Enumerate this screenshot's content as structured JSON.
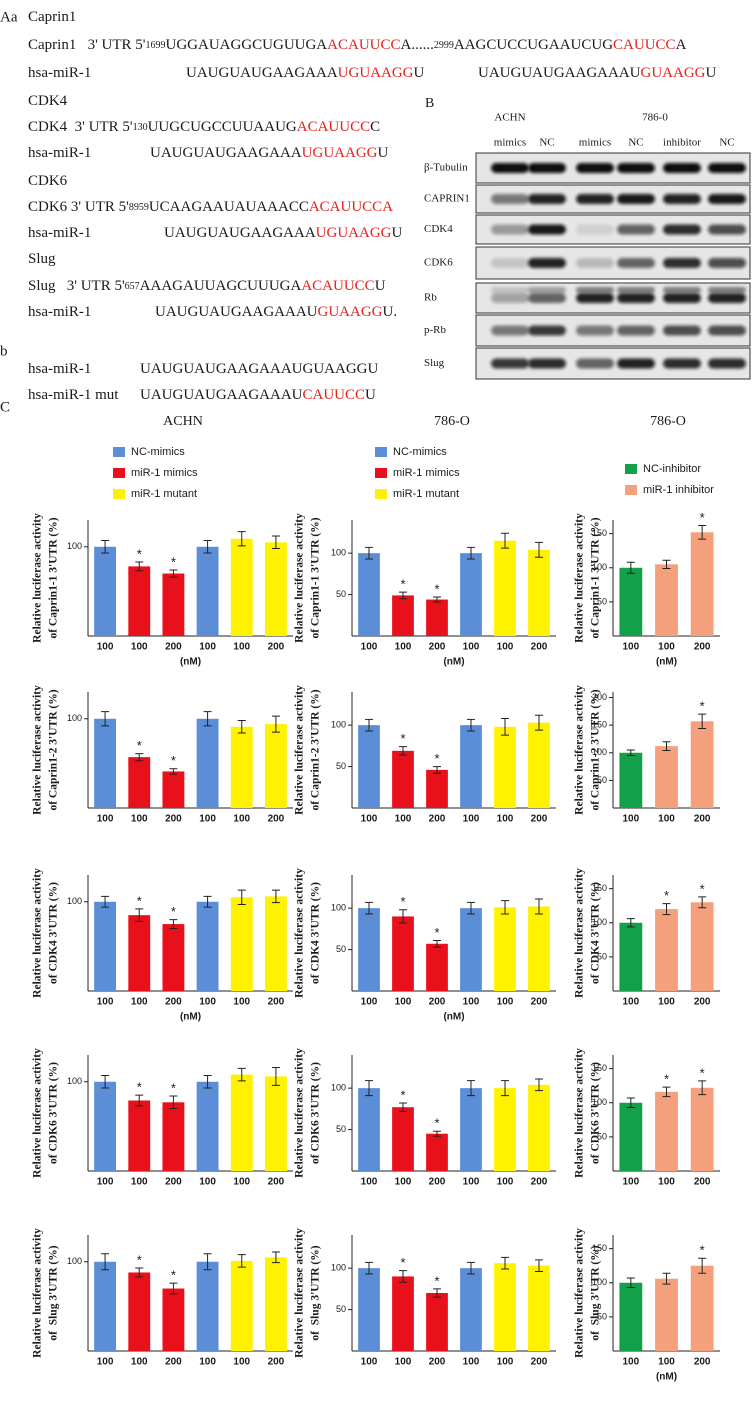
{
  "panel_A": {
    "label": "Aa",
    "lines": [
      [
        [
          {
            "text": "Caprin1"
          }
        ]
      ],
      [
        [
          {
            "text": "Caprin1   3' UTR 5'"
          },
          {
            "text": "1699",
            "small": true
          },
          {
            "text": "UGGAUAGGCUGUUGA"
          },
          {
            "text": "ACAUUCC",
            "color": "#e3211c"
          },
          {
            "text": "A......"
          },
          {
            "text": "2999",
            "small": true
          },
          {
            "text": "AAGCUCCUGAAUCUG"
          },
          {
            "text": "CAUUCC",
            "color": "#e3211c"
          },
          {
            "text": "A"
          }
        ]
      ],
      [
        [
          {
            "text": "hsa-miR-1"
          }
        ],
        [
          {
            "text": "UAUGUAUGAAGAAA"
          },
          {
            "text": "UGUAAGG",
            "color": "#e3211c"
          },
          {
            "text": "U"
          }
        ],
        [
          {
            "text": "UAUGUAUGAAGAAAU"
          },
          {
            "text": "GUAAGG",
            "color": "#e3211c"
          },
          {
            "text": "U"
          }
        ]
      ],
      [
        [
          {
            "text": "CDK4"
          }
        ]
      ],
      [
        [
          {
            "text": "CDK4  3' UTR 5'"
          },
          {
            "text": "130",
            "small": true
          },
          {
            "text": "UUGCUGCCUUAAUG"
          },
          {
            "text": "ACAUUCC",
            "color": "#e3211c"
          },
          {
            "text": "C"
          }
        ]
      ],
      [
        [
          {
            "text": "hsa-miR-1"
          }
        ],
        [
          {
            "text": "UAUGUAUGAAGAAA"
          },
          {
            "text": "UGUAAGG",
            "color": "#e3211c"
          },
          {
            "text": "U"
          }
        ]
      ],
      [
        [
          {
            "text": "CDK6"
          }
        ]
      ],
      [
        [
          {
            "text": "CDK6 3' UTR 5'"
          },
          {
            "text": "8959",
            "small": true
          },
          {
            "text": "UCAAGAAUAUAAACC"
          },
          {
            "text": "ACAUUCCA",
            "color": "#e3211c"
          }
        ]
      ],
      [
        [
          {
            "text": "hsa-miR-1"
          }
        ],
        [
          {
            "text": "UAUGUAUGAAGAAA"
          },
          {
            "text": "UGUAAGG",
            "color": "#e3211c"
          },
          {
            "text": "U"
          }
        ]
      ],
      [
        [
          {
            "text": "Slug"
          }
        ]
      ],
      [
        [
          {
            "text": "Slug   3' UTR 5'"
          },
          {
            "text": "657",
            "small": true
          },
          {
            "text": "AAAGAUUAGCUUUGA"
          },
          {
            "text": "ACAUUCC",
            "color": "#e3211c"
          },
          {
            "text": "U"
          }
        ]
      ],
      [
        [
          {
            "text": "hsa-miR-1"
          }
        ],
        [
          {
            "text": "UAUGUAUGAAGAAAU"
          },
          {
            "text": "GUAAGG",
            "color": "#e3211c"
          },
          {
            "text": "U."
          }
        ]
      ]
    ]
  },
  "panel_b": {
    "label": "b",
    "lines": [
      [
        [
          {
            "text": "hsa-miR-1"
          }
        ],
        [
          {
            "text": "UAUGUAUGAAGAAAUGUAAGGU"
          }
        ]
      ],
      [
        [
          {
            "text": "hsa-miR-1 mut"
          }
        ],
        [
          {
            "text": "UAUGUAUGAAGAAAU"
          },
          {
            "text": "CAUUCC",
            "color": "#e3211c"
          },
          {
            "text": "U"
          }
        ]
      ]
    ]
  },
  "panel_B": {
    "label": "B",
    "groups": [
      "ACHN",
      "786-0"
    ],
    "lanes": [
      "mimics",
      "NC",
      "mimics",
      "NC",
      "inhibitor",
      "NC"
    ],
    "rows": [
      "β-Tubulin",
      "CAPRIN1",
      "CDK4",
      "CDK6",
      "Rb",
      "p-Rb",
      "Slug"
    ]
  },
  "panel_C": {
    "label": "C",
    "columns": [
      "ACHN",
      "786-O",
      "786-O"
    ]
  },
  "chart_data": [
    {
      "type": "bar",
      "ylabel": [
        "Relative luciferase activity",
        "of Caprin1-1 3'UTR (%)"
      ],
      "xlabel": "(nM)",
      "categories": [
        "100",
        "100",
        "200",
        "100",
        "100",
        "200"
      ],
      "values": [
        100,
        78,
        70,
        100,
        109,
        105
      ],
      "errors": [
        7,
        5,
        4,
        7,
        8,
        7
      ],
      "colors": [
        "#5b8ed6",
        "#e8111b",
        "#e8111b",
        "#5b8ed6",
        "#fff200",
        "#fff200"
      ],
      "significance": [
        null,
        "*",
        "*",
        null,
        null,
        null
      ],
      "ylim": [
        0,
        130
      ],
      "yticks": [
        100
      ],
      "legend": [
        {
          "name": "NC-mimics",
          "color": "#5b8ed6"
        },
        {
          "name": "miR-1 mimics",
          "color": "#e8111b"
        },
        {
          "name": "miR-1 mutant",
          "color": "#fff200"
        }
      ]
    },
    {
      "type": "bar",
      "ylabel": [
        "Relative luciferase activity",
        "of Caprin1-1 3'UTR (%)"
      ],
      "xlabel": "(nM)",
      "categories": [
        "100",
        "100",
        "200",
        "100",
        "100",
        "200"
      ],
      "values": [
        100,
        49,
        44,
        100,
        115,
        104
      ],
      "errors": [
        7,
        4,
        3,
        7,
        9,
        9
      ],
      "colors": [
        "#5b8ed6",
        "#e8111b",
        "#e8111b",
        "#5b8ed6",
        "#fff200",
        "#fff200"
      ],
      "significance": [
        null,
        "*",
        "*",
        null,
        null,
        null
      ],
      "ylim": [
        0,
        140
      ],
      "yticks": [
        50,
        100
      ],
      "legend": [
        {
          "name": "NC-mimics",
          "color": "#5b8ed6"
        },
        {
          "name": "miR-1 mimics",
          "color": "#e8111b"
        },
        {
          "name": "miR-1 mutant",
          "color": "#fff200"
        }
      ]
    },
    {
      "type": "bar",
      "ylabel": [
        "Relative luciferase activity",
        "of Caprin1-1 3'UTR (%)"
      ],
      "xlabel": "(nM)",
      "categories": [
        "100",
        "100",
        "200"
      ],
      "values": [
        100,
        105,
        152
      ],
      "errors": [
        8,
        6,
        10
      ],
      "colors": [
        "#13a04a",
        "#f4a07c",
        "#f4a07c"
      ],
      "significance": [
        null,
        null,
        "*"
      ],
      "ylim": [
        0,
        170
      ],
      "yticks": [
        50,
        100,
        150
      ],
      "legend": [
        {
          "name": "NC-inhibitor",
          "color": "#13a04a"
        },
        {
          "name": "miR-1 inhibitor",
          "color": "#f4a07c"
        }
      ]
    },
    {
      "type": "bar",
      "ylabel": [
        "Relative luciferase activity",
        "of Caprin1-2 3'UTR (%)"
      ],
      "categories": [
        "100",
        "100",
        "200",
        "100",
        "100",
        "200"
      ],
      "values": [
        100,
        57,
        41,
        100,
        91,
        94
      ],
      "errors": [
        8,
        4,
        3,
        8,
        7,
        9
      ],
      "colors": [
        "#5b8ed6",
        "#e8111b",
        "#e8111b",
        "#5b8ed6",
        "#fff200",
        "#fff200"
      ],
      "significance": [
        null,
        "*",
        "*",
        null,
        null,
        null
      ],
      "ylim": [
        0,
        130
      ],
      "yticks": [
        100
      ]
    },
    {
      "type": "bar",
      "ylabel": [
        "Relative luciferase activity",
        "of Caprin1-2 3'UTR (%)"
      ],
      "categories": [
        "100",
        "100",
        "200",
        "100",
        "100",
        "200"
      ],
      "values": [
        100,
        69,
        46,
        100,
        98,
        103
      ],
      "errors": [
        7,
        5,
        4,
        7,
        10,
        9
      ],
      "colors": [
        "#5b8ed6",
        "#e8111b",
        "#e8111b",
        "#5b8ed6",
        "#fff200",
        "#fff200"
      ],
      "significance": [
        null,
        "*",
        "*",
        null,
        null,
        null
      ],
      "ylim": [
        0,
        140
      ],
      "yticks": [
        50,
        100
      ]
    },
    {
      "type": "bar",
      "ylabel": [
        "Relative luciferase activity",
        "of Caprin1-2 3'UTR (%)"
      ],
      "categories": [
        "100",
        "100",
        "200"
      ],
      "values": [
        100,
        112,
        157
      ],
      "errors": [
        5,
        8,
        13
      ],
      "colors": [
        "#13a04a",
        "#f4a07c",
        "#f4a07c"
      ],
      "significance": [
        null,
        null,
        "*"
      ],
      "ylim": [
        0,
        210
      ],
      "yticks": [
        50,
        100,
        150,
        200
      ]
    },
    {
      "type": "bar",
      "ylabel": [
        "Relative luciferase activity",
        "of CDK4 3'UTR (%)"
      ],
      "xlabel": "(nM)",
      "categories": [
        "100",
        "100",
        "200",
        "100",
        "100",
        "200"
      ],
      "values": [
        100,
        85,
        75,
        100,
        105,
        106
      ],
      "errors": [
        6,
        7,
        5,
        6,
        8,
        7
      ],
      "colors": [
        "#5b8ed6",
        "#e8111b",
        "#e8111b",
        "#5b8ed6",
        "#fff200",
        "#fff200"
      ],
      "significance": [
        null,
        "*",
        "*",
        null,
        null,
        null
      ],
      "ylim": [
        0,
        130
      ],
      "yticks": [
        100
      ]
    },
    {
      "type": "bar",
      "ylabel": [
        "Relative luciferase activity",
        "of CDK4 3'UTR (%)"
      ],
      "xlabel": "(nM)",
      "categories": [
        "100",
        "100",
        "200",
        "100",
        "100",
        "200"
      ],
      "values": [
        100,
        90,
        57,
        100,
        101,
        102
      ],
      "errors": [
        7,
        8,
        4,
        7,
        8,
        9
      ],
      "colors": [
        "#5b8ed6",
        "#e8111b",
        "#e8111b",
        "#5b8ed6",
        "#fff200",
        "#fff200"
      ],
      "significance": [
        null,
        "*",
        "*",
        null,
        null,
        null
      ],
      "ylim": [
        0,
        140
      ],
      "yticks": [
        50,
        100
      ]
    },
    {
      "type": "bar",
      "ylabel": [
        "Relative luciferase activity",
        "of CDK4 3'UTR (%)"
      ],
      "categories": [
        "100",
        "100",
        "200"
      ],
      "values": [
        100,
        120,
        130
      ],
      "errors": [
        6,
        8,
        8
      ],
      "colors": [
        "#13a04a",
        "#f4a07c",
        "#f4a07c"
      ],
      "significance": [
        null,
        "*",
        "*"
      ],
      "ylim": [
        0,
        170
      ],
      "yticks": [
        50,
        100,
        150
      ]
    },
    {
      "type": "bar",
      "ylabel": [
        "Relative luciferase activity",
        "of CDK6 3'UTR (%)"
      ],
      "categories": [
        "100",
        "100",
        "200",
        "100",
        "100",
        "200"
      ],
      "values": [
        100,
        79,
        77,
        100,
        108,
        106
      ],
      "errors": [
        7,
        6,
        7,
        7,
        7,
        10
      ],
      "colors": [
        "#5b8ed6",
        "#e8111b",
        "#e8111b",
        "#5b8ed6",
        "#fff200",
        "#fff200"
      ],
      "significance": [
        null,
        "*",
        "*",
        null,
        null,
        null
      ],
      "ylim": [
        0,
        130
      ],
      "yticks": [
        100
      ]
    },
    {
      "type": "bar",
      "ylabel": [
        "Relative luciferase activity",
        "of CDK6 3'UTR (%)"
      ],
      "categories": [
        "100",
        "100",
        "200",
        "100",
        "100",
        "200"
      ],
      "values": [
        100,
        77,
        45,
        100,
        100,
        104
      ],
      "errors": [
        9,
        5,
        3,
        9,
        9,
        7
      ],
      "colors": [
        "#5b8ed6",
        "#e8111b",
        "#e8111b",
        "#5b8ed6",
        "#fff200",
        "#fff200"
      ],
      "significance": [
        null,
        "*",
        "*",
        null,
        null,
        null
      ],
      "ylim": [
        0,
        140
      ],
      "yticks": [
        50,
        100
      ]
    },
    {
      "type": "bar",
      "ylabel": [
        "Relative luciferase activity",
        "of CDK6 3'UTR (%)"
      ],
      "categories": [
        "100",
        "100",
        "200"
      ],
      "values": [
        100,
        116,
        122
      ],
      "errors": [
        7,
        7,
        10
      ],
      "colors": [
        "#13a04a",
        "#f4a07c",
        "#f4a07c"
      ],
      "significance": [
        null,
        "*",
        "*"
      ],
      "ylim": [
        0,
        170
      ],
      "yticks": [
        50,
        100,
        150
      ]
    },
    {
      "type": "bar",
      "ylabel": [
        "Relative luciferase activity",
        "of  Slug 3'UTR (%)"
      ],
      "categories": [
        "100",
        "100",
        "200",
        "100",
        "100",
        "200"
      ],
      "values": [
        100,
        88,
        70,
        100,
        101,
        105
      ],
      "errors": [
        9,
        5,
        6,
        9,
        7,
        6
      ],
      "colors": [
        "#5b8ed6",
        "#e8111b",
        "#e8111b",
        "#5b8ed6",
        "#fff200",
        "#fff200"
      ],
      "significance": [
        null,
        "*",
        "*",
        null,
        null,
        null
      ],
      "ylim": [
        0,
        130
      ],
      "yticks": [
        100
      ]
    },
    {
      "type": "bar",
      "ylabel": [
        "Relative luciferase activity",
        "of  Slug 3'UTR (%)"
      ],
      "categories": [
        "100",
        "100",
        "200",
        "100",
        "100",
        "200"
      ],
      "values": [
        100,
        90,
        70,
        100,
        106,
        103
      ],
      "errors": [
        7,
        7,
        5,
        7,
        7,
        7
      ],
      "colors": [
        "#5b8ed6",
        "#e8111b",
        "#e8111b",
        "#5b8ed6",
        "#fff200",
        "#fff200"
      ],
      "significance": [
        null,
        "*",
        "*",
        null,
        null,
        null
      ],
      "ylim": [
        0,
        140
      ],
      "yticks": [
        50,
        100
      ]
    },
    {
      "type": "bar",
      "ylabel": [
        "Relative luciferase activity",
        "of  Slug 3'UTR (%)"
      ],
      "xlabel": "(nM)",
      "categories": [
        "100",
        "100",
        "200"
      ],
      "values": [
        100,
        106,
        125
      ],
      "errors": [
        7,
        8,
        11
      ],
      "colors": [
        "#13a04a",
        "#f4a07c",
        "#f4a07c"
      ],
      "significance": [
        null,
        null,
        "*"
      ],
      "ylim": [
        0,
        170
      ],
      "yticks": [
        50,
        100,
        150
      ]
    }
  ]
}
